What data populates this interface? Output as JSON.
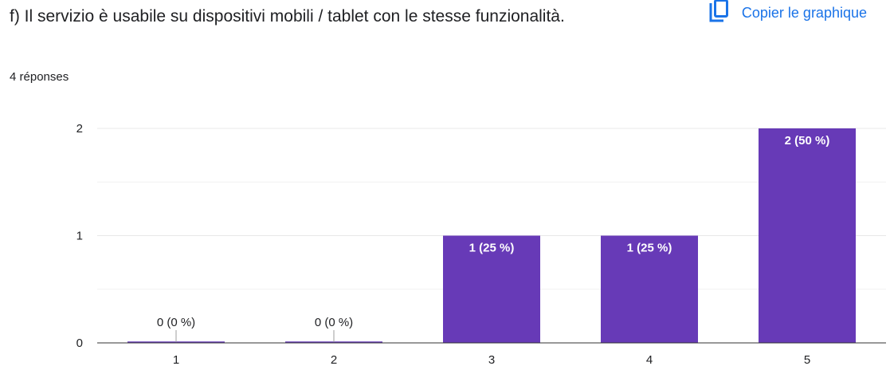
{
  "header": {
    "title": "f) Il servizio è usabile su dispositivi mobili / tablet con le stesse funzionalità.",
    "response_count": "4 réponses",
    "copy_label": "Copier le graphique",
    "copy_icon": "copy-icon"
  },
  "colors": {
    "bar": "#673ab7",
    "link": "#1a73e8",
    "grid": "#e8e8e8",
    "axis": "#333333"
  },
  "chart_data": {
    "type": "bar",
    "categories": [
      "1",
      "2",
      "3",
      "4",
      "5"
    ],
    "values": [
      0,
      0,
      1,
      1,
      2
    ],
    "data_labels": [
      "0 (0 %)",
      "0 (0 %)",
      "1 (25 %)",
      "1 (25 %)",
      "2 (50 %)"
    ],
    "y_ticks": [
      "0",
      "1",
      "2"
    ],
    "ylim": [
      0,
      2
    ],
    "grid": true,
    "legend": false,
    "title": "",
    "xlabel": "",
    "ylabel": ""
  }
}
